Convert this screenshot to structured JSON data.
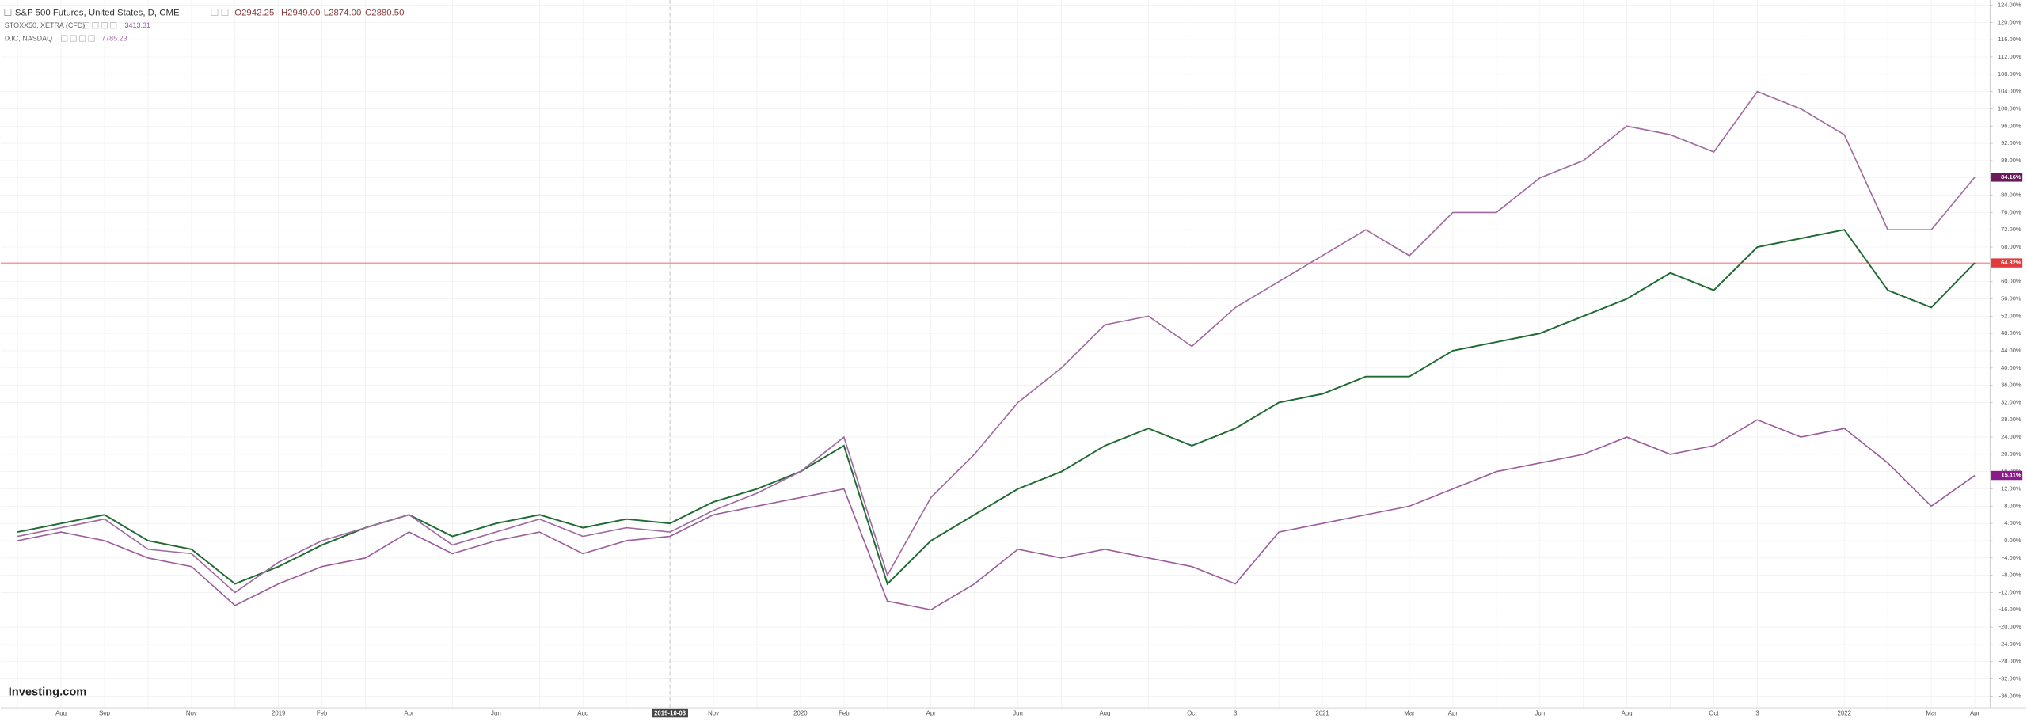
{
  "chart_data": {
    "type": "line",
    "legend": {
      "ohlc": [
        "O2942.25",
        "H2949.00",
        "L2874.00",
        "C2880.50"
      ]
    },
    "logo": "Investing.com",
    "categories": [
      null,
      "Aug",
      "Sep",
      null,
      "Nov",
      null,
      "2019",
      "Feb",
      null,
      "Apr",
      null,
      "Jun",
      null,
      "Aug",
      null,
      "2019-10-03",
      "Nov",
      null,
      "2020",
      "Feb",
      null,
      "Apr",
      null,
      "Jun",
      null,
      "Aug",
      null,
      "Oct",
      "3",
      null,
      "2021",
      null,
      "Mar",
      "Apr",
      null,
      "Jun",
      null,
      "Aug",
      null,
      "Oct",
      "3",
      null,
      "2022",
      null,
      "Mar",
      "Apr"
    ],
    "crosshair_index": 15,
    "series": [
      {
        "name": "S&P 500 Futures, United States, D, CME",
        "color": "#1f6b34",
        "badge_color": "#e23b3b",
        "values": [
          2,
          4,
          6,
          0,
          -2,
          -10,
          -6,
          -1,
          3,
          6,
          1,
          4,
          6,
          3,
          5,
          4,
          9,
          12,
          16,
          22,
          -10,
          0,
          6,
          12,
          16,
          22,
          26,
          22,
          26,
          32,
          34,
          38,
          38,
          44,
          46,
          48,
          52,
          56,
          62,
          58,
          68,
          70,
          72,
          58,
          54,
          64.32
        ],
        "value_labels": [
          null,
          null,
          null,
          null,
          null,
          null,
          null,
          null,
          null,
          null,
          null,
          null,
          null,
          null,
          null,
          null,
          null,
          null,
          null,
          null,
          null,
          null,
          null,
          null,
          null,
          null,
          null,
          null,
          null,
          null,
          null,
          null,
          null,
          null,
          null,
          null,
          null,
          null,
          null,
          null,
          null,
          null,
          null,
          null,
          null,
          "64.32%"
        ]
      },
      {
        "name": "STOXX50, XETRA (CFD)",
        "last_price": "3413.31",
        "color": "#9b5c9b",
        "badge_color": "#8b1a8b",
        "values": [
          0,
          2,
          0,
          -4,
          -6,
          -15,
          -10,
          -6,
          -4,
          2,
          -3,
          0,
          2,
          -3,
          0,
          1,
          6,
          8,
          10,
          12,
          -14,
          -16,
          -10,
          -2,
          -4,
          -2,
          -4,
          -6,
          -10,
          2,
          4,
          6,
          8,
          12,
          16,
          18,
          20,
          24,
          20,
          22,
          28,
          24,
          26,
          18,
          8,
          15.11
        ],
        "value_labels": [
          null,
          null,
          null,
          null,
          null,
          null,
          null,
          null,
          null,
          null,
          null,
          null,
          null,
          null,
          null,
          null,
          null,
          null,
          null,
          null,
          null,
          null,
          null,
          null,
          null,
          null,
          null,
          null,
          null,
          null,
          null,
          null,
          null,
          null,
          null,
          null,
          null,
          null,
          null,
          null,
          null,
          null,
          null,
          null,
          null,
          "15.11%"
        ]
      },
      {
        "name": "IXIC, NASDAQ",
        "last_price": "7785.23",
        "color": "#a06aa0",
        "badge_color": "#6a1a5a",
        "values": [
          1,
          3,
          5,
          -2,
          -3,
          -12,
          -5,
          0,
          3,
          6,
          -1,
          2,
          5,
          1,
          3,
          2,
          7,
          11,
          16,
          24,
          -8,
          10,
          20,
          32,
          40,
          50,
          52,
          45,
          54,
          60,
          66,
          72,
          66,
          76,
          76,
          84,
          88,
          96,
          94,
          90,
          104,
          100,
          94,
          72,
          72,
          84.16
        ],
        "value_labels": [
          null,
          null,
          null,
          null,
          null,
          null,
          null,
          null,
          null,
          null,
          null,
          null,
          null,
          null,
          null,
          null,
          null,
          null,
          null,
          null,
          null,
          null,
          null,
          null,
          null,
          null,
          null,
          null,
          null,
          null,
          null,
          null,
          null,
          null,
          null,
          null,
          null,
          null,
          null,
          null,
          null,
          null,
          null,
          null,
          null,
          "84.16%"
        ]
      }
    ],
    "ylim": [
      -36,
      124
    ],
    "yticks": [
      {
        "value": -36,
        "label": "-36.00%"
      },
      {
        "value": -32,
        "label": "-32.00%"
      },
      {
        "value": -28,
        "label": "-28.00%"
      },
      {
        "value": -24,
        "label": "-24.00%"
      },
      {
        "value": -20,
        "label": "-20.00%"
      },
      {
        "value": -16,
        "label": "-16.00%"
      },
      {
        "value": -12,
        "label": "-12.00%"
      },
      {
        "value": -8,
        "label": "-8.00%"
      },
      {
        "value": -4,
        "label": "-4.00%"
      },
      {
        "value": 0,
        "label": "0.00%"
      },
      {
        "value": 4,
        "label": "4.00%"
      },
      {
        "value": 8,
        "label": "8.00%"
      },
      {
        "value": 12,
        "label": "12.00%"
      },
      {
        "value": 16,
        "label": "16.00%"
      },
      {
        "value": 20,
        "label": "20.00%"
      },
      {
        "value": 24,
        "label": "24.00%"
      },
      {
        "value": 28,
        "label": "28.00%"
      },
      {
        "value": 32,
        "label": "32.00%"
      },
      {
        "value": 36,
        "label": "36.00%"
      },
      {
        "value": 40,
        "label": "40.00%"
      },
      {
        "value": 44,
        "label": "44.00%"
      },
      {
        "value": 48,
        "label": "48.00%"
      },
      {
        "value": 52,
        "label": "52.00%"
      },
      {
        "value": 56,
        "label": "56.00%"
      },
      {
        "value": 60,
        "label": "60.00%"
      },
      {
        "value": 64,
        "label": "64.00%"
      },
      {
        "value": 68,
        "label": "68.00%"
      },
      {
        "value": 72,
        "label": "72.00%"
      },
      {
        "value": 76,
        "label": "76.00%"
      },
      {
        "value": 80,
        "label": "80.00%"
      },
      {
        "value": 84,
        "label": "84.00%"
      },
      {
        "value": 88,
        "label": "88.00%"
      },
      {
        "value": 92,
        "label": "92.00%"
      },
      {
        "value": 96,
        "label": "96.00%"
      },
      {
        "value": 100,
        "label": "100.00%"
      },
      {
        "value": 104,
        "label": "104.00%"
      },
      {
        "value": 108,
        "label": "108.00%"
      },
      {
        "value": 112,
        "label": "112.00%"
      },
      {
        "value": 116,
        "label": "116.00%"
      },
      {
        "value": 120,
        "label": "120.00%"
      },
      {
        "value": 124,
        "label": "124.00%"
      }
    ],
    "grid": true
  }
}
